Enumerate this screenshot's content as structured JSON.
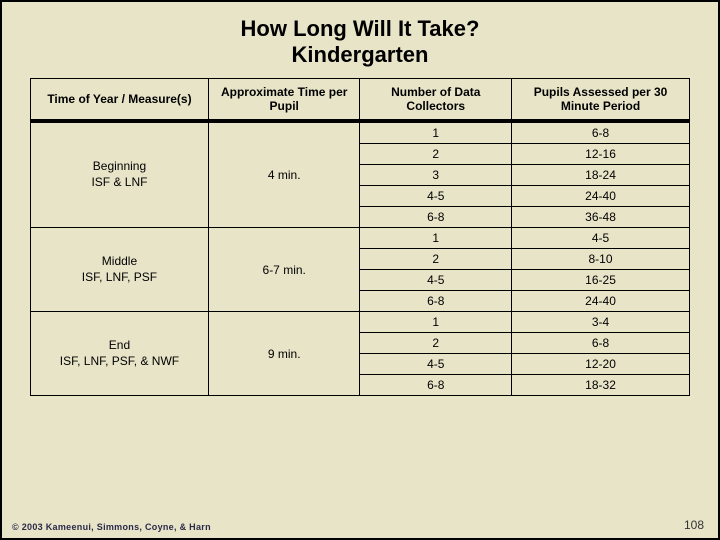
{
  "title": "How Long Will It Take?\nKindergarten",
  "columns": [
    "Time of Year / Measure(s)",
    "Approximate Time per Pupil",
    "Number of Data Collectors",
    "Pupils Assessed per 30 Minute Period"
  ],
  "sections": [
    {
      "label_line1": "Beginning",
      "label_line2": "ISF & LNF",
      "time": "4 min.",
      "rows": [
        {
          "collectors": "1",
          "pupils": "6-8"
        },
        {
          "collectors": "2",
          "pupils": "12-16"
        },
        {
          "collectors": "3",
          "pupils": "18-24"
        },
        {
          "collectors": "4-5",
          "pupils": "24-40"
        },
        {
          "collectors": "6-8",
          "pupils": "36-48"
        }
      ]
    },
    {
      "label_line1": "Middle",
      "label_line2": "ISF, LNF, PSF",
      "time": "6-7 min.",
      "rows": [
        {
          "collectors": "1",
          "pupils": "4-5"
        },
        {
          "collectors": "2",
          "pupils": "8-10"
        },
        {
          "collectors": "4-5",
          "pupils": "16-25"
        },
        {
          "collectors": "6-8",
          "pupils": "24-40"
        }
      ]
    },
    {
      "label_line1": "End",
      "label_line2": "ISF, LNF, PSF, & NWF",
      "time": "9 min.",
      "rows": [
        {
          "collectors": "1",
          "pupils": "3-4"
        },
        {
          "collectors": "2",
          "pupils": "6-8"
        },
        {
          "collectors": "4-5",
          "pupils": "12-20"
        },
        {
          "collectors": "6-8",
          "pupils": "18-32"
        }
      ]
    }
  ],
  "footer": "© 2003 Kameenui, Simmons, Coyne, & Harn",
  "pagenum": "108",
  "colors": {
    "background": "#e8e4c8",
    "border": "#000000",
    "text": "#000000"
  },
  "col_widths": [
    "27%",
    "23%",
    "23%",
    "27%"
  ]
}
